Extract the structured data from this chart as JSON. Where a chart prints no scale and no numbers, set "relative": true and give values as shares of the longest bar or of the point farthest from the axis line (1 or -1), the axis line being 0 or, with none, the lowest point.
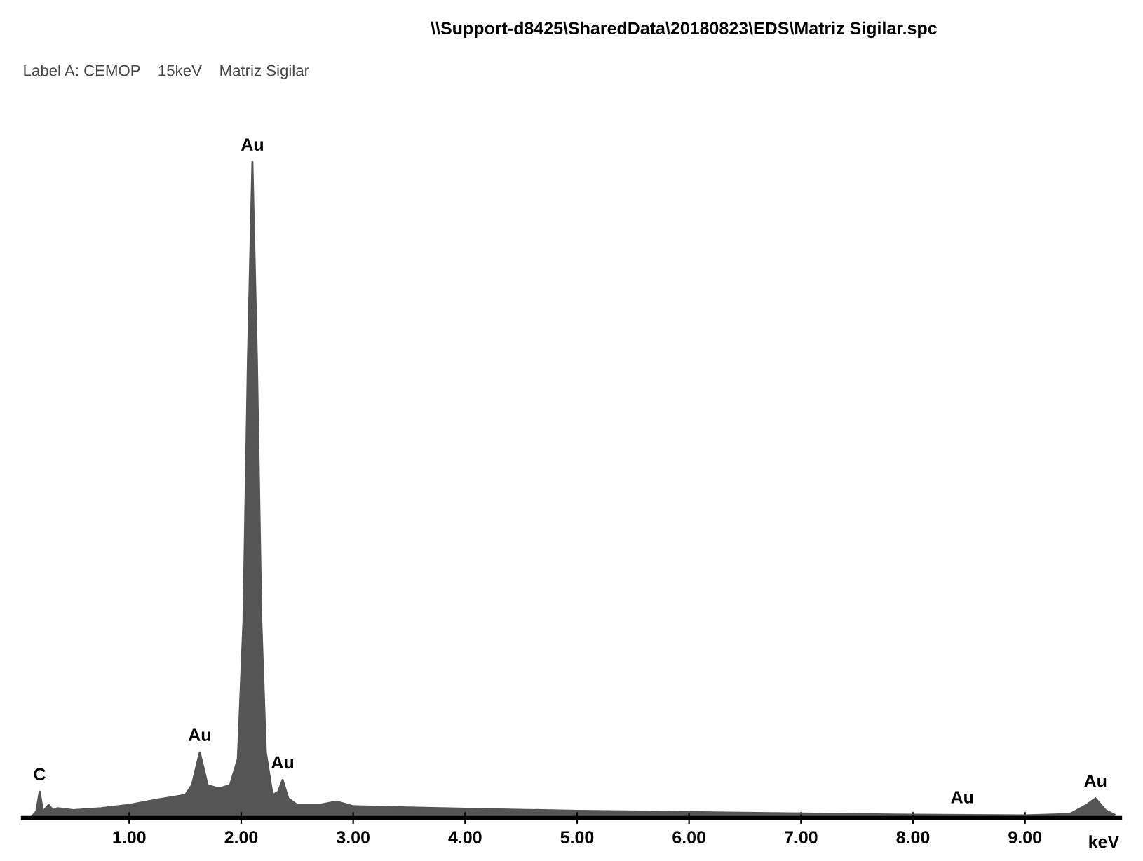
{
  "chart_data": {
    "type": "area",
    "title": "\\\\Support-d8425\\SharedData\\20180823\\EDS\\Matriz Sigilar.spc",
    "subtitle": "Label A: CEMOP    15keV    Matriz Sigilar",
    "xlabel": "keV",
    "relative": true,
    "x": [
      0.12,
      0.17,
      0.2,
      0.23,
      0.28,
      0.32,
      0.36,
      0.5,
      0.75,
      1.0,
      1.25,
      1.5,
      1.56,
      1.63,
      1.7,
      1.8,
      1.9,
      1.97,
      2.02,
      2.06,
      2.1,
      2.14,
      2.18,
      2.22,
      2.28,
      2.33,
      2.37,
      2.42,
      2.5,
      2.7,
      2.85,
      3.0,
      3.5,
      4.0,
      5.0,
      6.0,
      7.0,
      8.0,
      9.0,
      9.4,
      9.55,
      9.63,
      9.72,
      9.8
    ],
    "series": [
      {
        "color": "#555555",
        "values": [
          0.0,
          0.01,
          0.04,
          0.01,
          0.02,
          0.012,
          0.015,
          0.012,
          0.015,
          0.02,
          0.028,
          0.035,
          0.05,
          0.1,
          0.05,
          0.045,
          0.05,
          0.09,
          0.3,
          0.7,
          1.0,
          0.7,
          0.3,
          0.1,
          0.035,
          0.04,
          0.058,
          0.03,
          0.02,
          0.02,
          0.025,
          0.018,
          0.016,
          0.014,
          0.011,
          0.009,
          0.007,
          0.005,
          0.004,
          0.006,
          0.02,
          0.03,
          0.012,
          0.005
        ]
      }
    ],
    "xlim": [
      0.05,
      9.85
    ],
    "xticks": [
      {
        "value": 1,
        "label": "1.00"
      },
      {
        "value": 2,
        "label": "2.00"
      },
      {
        "value": 3,
        "label": "3.00"
      },
      {
        "value": 4,
        "label": "4.00"
      },
      {
        "value": 5,
        "label": "5.00"
      },
      {
        "value": 6,
        "label": "6.00"
      },
      {
        "value": 7,
        "label": "7.00"
      },
      {
        "value": 8,
        "label": "8.00"
      },
      {
        "value": 9,
        "label": "9.00"
      }
    ],
    "annotations": [
      {
        "text": "C",
        "x": 0.2,
        "y": 0.04
      },
      {
        "text": "Au",
        "x": 1.63,
        "y": 0.1
      },
      {
        "text": "Au",
        "x": 2.1,
        "y": 1.0
      },
      {
        "text": "Au",
        "x": 2.37,
        "y": 0.058
      },
      {
        "text": "Au",
        "x": 8.44,
        "y": 0.005
      },
      {
        "text": "Au",
        "x": 9.63,
        "y": 0.03
      }
    ],
    "grid": false,
    "legend": false
  }
}
